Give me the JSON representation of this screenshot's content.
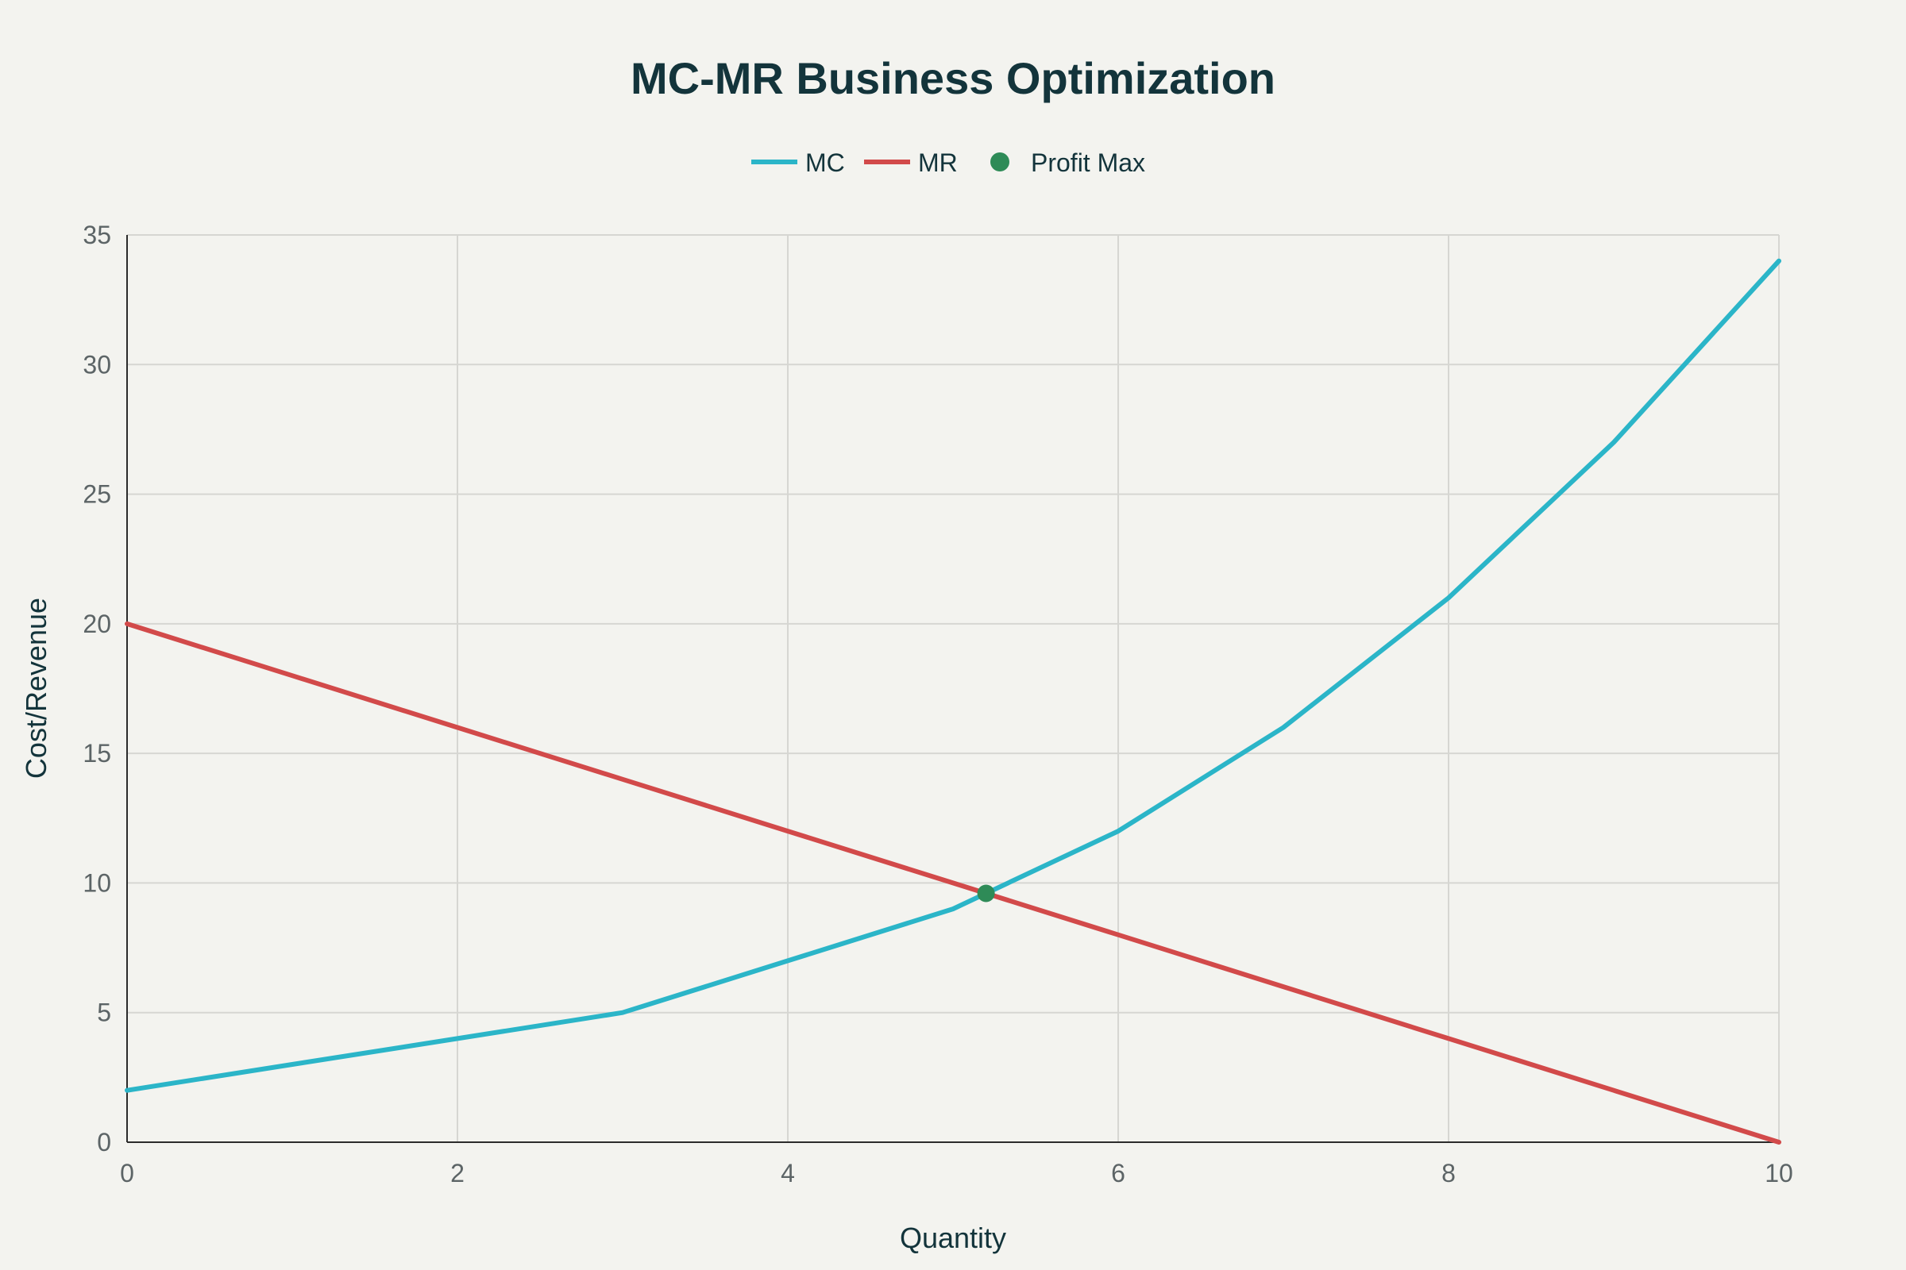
{
  "chart_data": {
    "type": "line",
    "title": "MC-MR Business Optimization",
    "xlabel": "Quantity",
    "ylabel": "Cost/Revenue",
    "xlim": [
      0,
      10
    ],
    "ylim": [
      0,
      35
    ],
    "xticks": [
      0,
      2,
      4,
      6,
      8,
      10
    ],
    "yticks": [
      0,
      5,
      10,
      15,
      20,
      25,
      30,
      35
    ],
    "grid": true,
    "legend_position": "top-center",
    "series": [
      {
        "name": "MC",
        "kind": "line",
        "color": "#2bb5c8",
        "x": [
          0,
          1,
          2,
          3,
          4,
          5,
          6,
          7,
          8,
          9,
          10
        ],
        "values": [
          2,
          3,
          4,
          5,
          7,
          9,
          12,
          16,
          21,
          27,
          34
        ]
      },
      {
        "name": "MR",
        "kind": "line",
        "color": "#d24a4a",
        "x": [
          0,
          1,
          2,
          3,
          4,
          5,
          6,
          7,
          8,
          9,
          10
        ],
        "values": [
          20,
          18,
          16,
          14,
          12,
          10,
          8,
          6,
          4,
          2,
          0
        ]
      },
      {
        "name": "Profit Max",
        "kind": "marker",
        "color": "#2e8b57",
        "x": [
          5.2
        ],
        "values": [
          9.6
        ]
      }
    ]
  }
}
